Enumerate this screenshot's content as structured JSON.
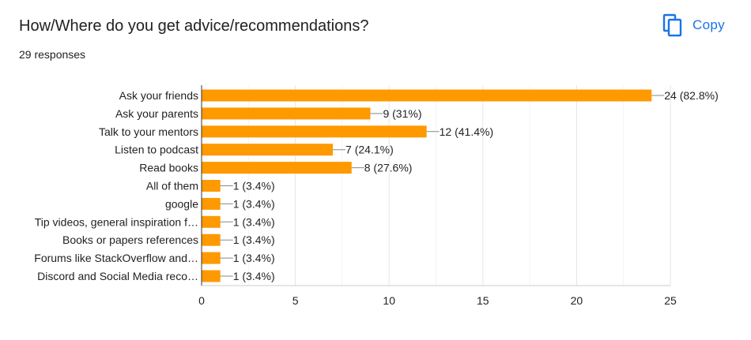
{
  "header": {
    "question": "How/Where do you get advice/recommendations?",
    "responses": "29 responses",
    "copy_label": "Copy",
    "copy_icon": "copy-icon"
  },
  "colors": {
    "bar": "#ff9900",
    "accent": "#1a73e8",
    "grid": "#ececec",
    "axis": "#333333"
  },
  "chart_data": {
    "type": "bar",
    "orientation": "horizontal",
    "title": "",
    "xlabel": "",
    "ylabel": "",
    "xlim": [
      0,
      25
    ],
    "xticks": [
      0,
      5,
      10,
      15,
      20,
      25
    ],
    "grid": true,
    "categories": [
      "Ask your friends",
      "Ask your parents",
      "Talk to your mentors",
      "Listen to podcast",
      "Read books",
      "All of them",
      "google",
      "Tip videos, general inspiration f…",
      "Books or papers references",
      "Forums like StackOverflow and…",
      "Discord and Social Media reco…"
    ],
    "values": [
      24,
      9,
      12,
      7,
      8,
      1,
      1,
      1,
      1,
      1,
      1
    ],
    "data_labels": [
      "24 (82.8%)",
      "9 (31%)",
      "12 (41.4%)",
      "7 (24.1%)",
      "8 (27.6%)",
      "1 (3.4%)",
      "1 (3.4%)",
      "1 (3.4%)",
      "1 (3.4%)",
      "1 (3.4%)",
      "1 (3.4%)"
    ]
  }
}
